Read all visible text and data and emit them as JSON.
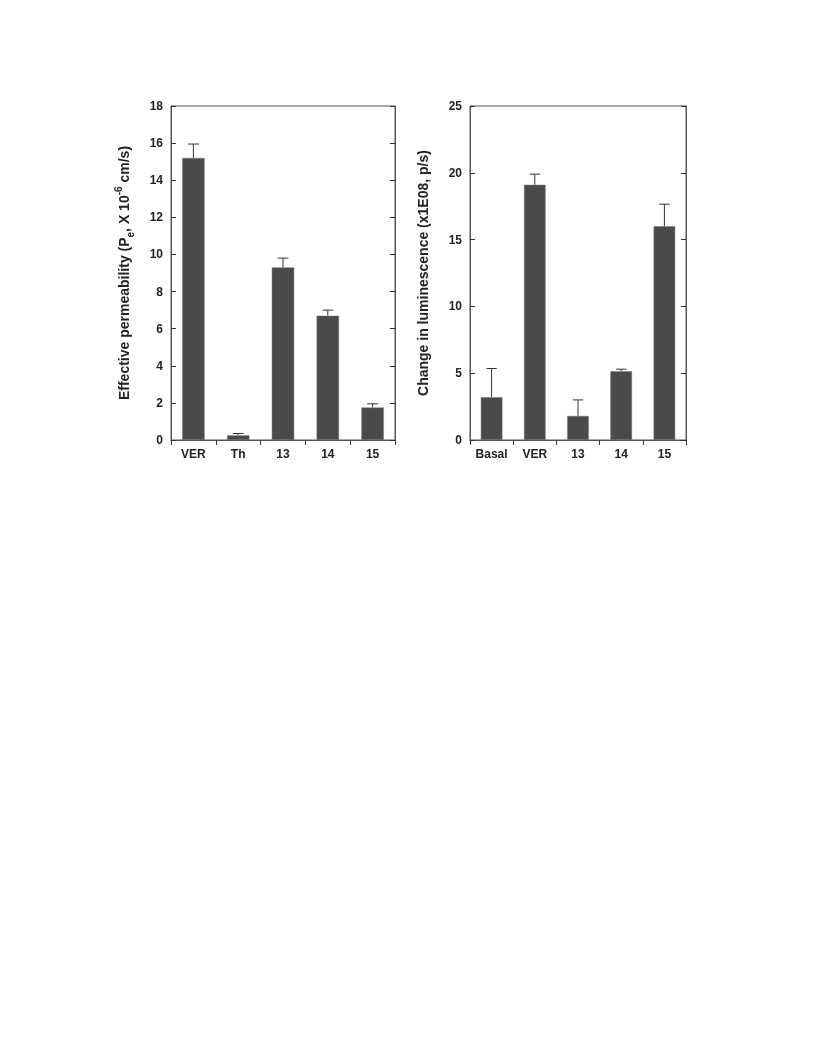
{
  "chart_data": [
    {
      "type": "bar",
      "ylabel": "Effective permeability (P$_{e}$, X 10$^{-6}$ cm/s)",
      "categories": [
        "VER",
        "Th",
        "13",
        "14",
        "15"
      ],
      "values": [
        15.2,
        0.25,
        9.3,
        6.7,
        1.75
      ],
      "errors": [
        [
          15.2,
          15.95
        ],
        [
          0.25,
          0.35
        ],
        [
          9.3,
          9.8
        ],
        [
          6.7,
          7.0
        ],
        [
          1.75,
          1.95
        ]
      ],
      "color": "#4a4a4a",
      "ylim": [
        0,
        18
      ],
      "yticks": [
        0,
        2,
        4,
        6,
        8,
        10,
        12,
        14,
        16,
        18
      ],
      "grid": false
    },
    {
      "type": "bar",
      "ylabel": "Change in luminescence (x1E08, p/s)",
      "categories": [
        "Basal",
        "VER",
        "13",
        "14",
        "15"
      ],
      "values": [
        3.2,
        19.1,
        1.8,
        5.15,
        16.0
      ],
      "errors": [
        [
          3.2,
          5.35
        ],
        [
          19.1,
          19.9
        ],
        [
          1.8,
          3.0
        ],
        [
          5.15,
          5.3
        ],
        [
          16.0,
          17.65
        ]
      ],
      "color": "#4a4a4a",
      "ylim": [
        0,
        25
      ],
      "yticks": [
        0,
        5,
        10,
        15,
        20,
        25
      ],
      "grid": false
    }
  ]
}
